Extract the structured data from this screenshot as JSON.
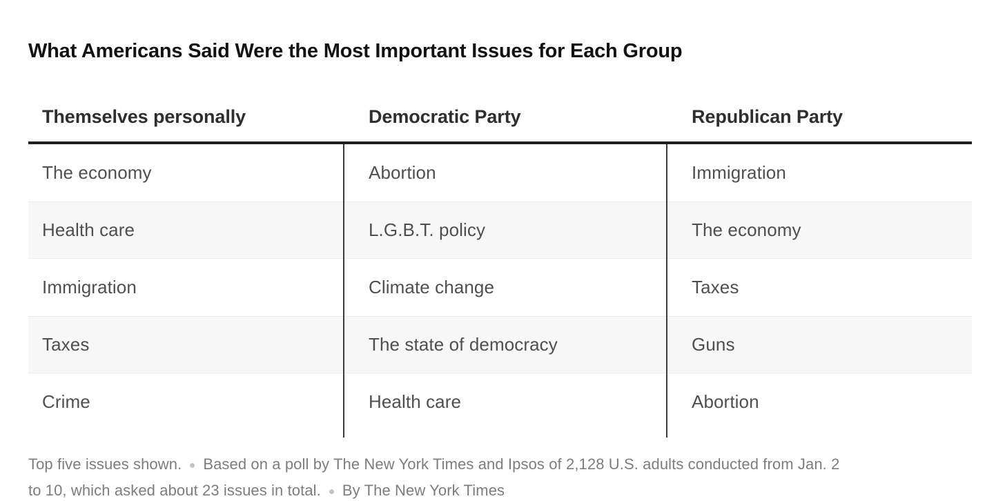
{
  "chart_data": {
    "type": "table",
    "title": "What Americans Said Were the Most Important Issues for Each Group",
    "columns": [
      "Themselves personally",
      "Democratic Party",
      "Republican Party"
    ],
    "rows": [
      [
        "The economy",
        "Abortion",
        "Immigration"
      ],
      [
        "Health care",
        "L.G.B.T. policy",
        "The economy"
      ],
      [
        "Immigration",
        "Climate change",
        "Taxes"
      ],
      [
        "Taxes",
        "The state of democracy",
        "Guns"
      ],
      [
        "Crime",
        "Health care",
        "Abortion"
      ]
    ],
    "notes": "Top five issues shown. Based on a poll by The New York Times and Ipsos of 2,128 U.S. adults conducted from Jan. 2 to 10, which asked about 23 issues in total. By The New York Times",
    "layout": {
      "grid": "off",
      "row_striping": "alternate",
      "stripe_rows": [
        2,
        4
      ]
    }
  },
  "footer": {
    "line1": [
      "Top five issues shown.",
      "Based on a poll by The New York Times and Ipsos of 2,128 U.S. adults conducted from Jan. 2"
    ],
    "line2": [
      "to 10, which asked about 23 issues in total.",
      "By The New York Times"
    ]
  },
  "colors": {
    "header_rule": "#1f1f1f",
    "column_divider": "#3a3a3a",
    "row_alt_bg": "#f7f7f7",
    "title_text": "#121212",
    "header_text": "#2e2e2e",
    "cell_text": "#4f4f4f",
    "footer_text": "#7d7d7d",
    "bullet": "#c4c4c4"
  }
}
